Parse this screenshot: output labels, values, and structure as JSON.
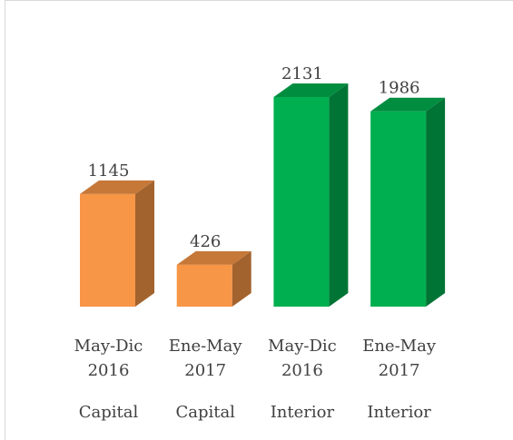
{
  "chart_data": {
    "type": "bar3d",
    "categories": [
      [
        "May-Dic",
        "2016"
      ],
      [
        "Ene-May",
        "2017"
      ],
      [
        "May-Dic",
        "2016"
      ],
      [
        "Ene-May",
        "2017"
      ]
    ],
    "groups": [
      "Capital",
      "Capital",
      "Interior",
      "Interior"
    ],
    "values": [
      1145,
      426,
      2131,
      1986
    ],
    "colors": [
      "#f79646",
      "#f79646",
      "#00b050",
      "#00b050"
    ]
  }
}
